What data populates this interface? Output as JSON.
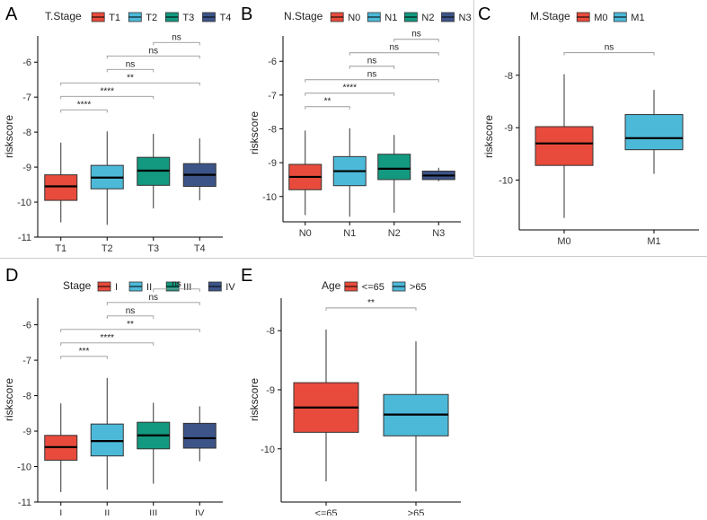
{
  "colors": {
    "red": "#e84b3c",
    "blue": "#4db9d9",
    "green": "#139980",
    "navy": "#3c5488"
  },
  "chart_data": [
    {
      "id": "A",
      "type": "boxplot",
      "panel_label": "A",
      "legend_title": "T.Stage",
      "categories": [
        "T1",
        "T2",
        "T3",
        "T4"
      ],
      "legend_labels": [
        "T1",
        "T2",
        "T3",
        "T4"
      ],
      "color_keys": [
        "red",
        "blue",
        "green",
        "navy"
      ],
      "ylabel": "riskscore",
      "xlabel": "",
      "ylim": [
        -11,
        -5.25
      ],
      "yticks": [
        -11,
        -10,
        -9,
        -8,
        -7,
        -6
      ],
      "ytick_labels": [
        "-11",
        "-10",
        "-9",
        "-8",
        "-7",
        "-6"
      ],
      "boxes": [
        {
          "min": -10.58,
          "q1": -9.95,
          "median": -9.55,
          "q3": -9.22,
          "max": -8.3
        },
        {
          "min": -10.65,
          "q1": -9.62,
          "median": -9.3,
          "q3": -8.95,
          "max": -7.98
        },
        {
          "min": -10.18,
          "q1": -9.52,
          "median": -9.1,
          "q3": -8.72,
          "max": -8.05
        },
        {
          "min": -9.95,
          "q1": -9.55,
          "median": -9.22,
          "q3": -8.9,
          "max": -8.18
        }
      ],
      "comparisons": [
        {
          "from": 0,
          "to": 1,
          "label": "****"
        },
        {
          "from": 0,
          "to": 2,
          "label": "****"
        },
        {
          "from": 0,
          "to": 3,
          "label": "**"
        },
        {
          "from": 1,
          "to": 2,
          "label": "ns"
        },
        {
          "from": 1,
          "to": 3,
          "label": "ns"
        },
        {
          "from": 2,
          "to": 3,
          "label": "ns"
        }
      ]
    },
    {
      "id": "B",
      "type": "boxplot",
      "panel_label": "B",
      "legend_title": "N.Stage",
      "categories": [
        "N0",
        "N1",
        "N2",
        "N3"
      ],
      "legend_labels": [
        "N0",
        "N1",
        "N2",
        "N3"
      ],
      "color_keys": [
        "red",
        "blue",
        "green",
        "navy"
      ],
      "ylabel": "riskscore",
      "xlabel": "",
      "ylim": [
        -10.75,
        -5.25
      ],
      "yticks": [
        -10,
        -9,
        -8,
        -7,
        -6
      ],
      "ytick_labels": [
        "-10",
        "-9",
        "-8",
        "-7",
        "-6"
      ],
      "boxes": [
        {
          "min": -10.55,
          "q1": -9.8,
          "median": -9.42,
          "q3": -9.05,
          "max": -8.05
        },
        {
          "min": -10.6,
          "q1": -9.68,
          "median": -9.25,
          "q3": -8.82,
          "max": -7.98
        },
        {
          "min": -10.48,
          "q1": -9.5,
          "median": -9.18,
          "q3": -8.75,
          "max": -8.18
        },
        {
          "min": -9.55,
          "q1": -9.5,
          "median": -9.38,
          "q3": -9.25,
          "max": -9.15
        }
      ],
      "comparisons": [
        {
          "from": 0,
          "to": 1,
          "label": "**"
        },
        {
          "from": 0,
          "to": 2,
          "label": "****"
        },
        {
          "from": 0,
          "to": 3,
          "label": "ns"
        },
        {
          "from": 1,
          "to": 2,
          "label": "ns"
        },
        {
          "from": 1,
          "to": 3,
          "label": "ns"
        },
        {
          "from": 2,
          "to": 3,
          "label": "ns"
        }
      ]
    },
    {
      "id": "C",
      "type": "boxplot",
      "panel_label": "C",
      "legend_title": "M.Stage",
      "categories": [
        "M0",
        "M1"
      ],
      "legend_labels": [
        "M0",
        "M1"
      ],
      "color_keys": [
        "red",
        "blue"
      ],
      "ylabel": "riskscore",
      "xlabel": "",
      "ylim": [
        -10.95,
        -7.25
      ],
      "yticks": [
        -10,
        -9,
        -8
      ],
      "ytick_labels": [
        "-10",
        "-9",
        "-8"
      ],
      "boxes": [
        {
          "min": -10.72,
          "q1": -9.72,
          "median": -9.3,
          "q3": -8.98,
          "max": -7.98
        },
        {
          "min": -9.88,
          "q1": -9.42,
          "median": -9.2,
          "q3": -8.75,
          "max": -8.28
        }
      ],
      "comparisons": [
        {
          "from": 0,
          "to": 1,
          "label": "ns"
        }
      ]
    },
    {
      "id": "D",
      "type": "boxplot",
      "panel_label": "D",
      "legend_title": "Stage",
      "categories": [
        "I",
        "II",
        "III",
        "IV"
      ],
      "legend_labels": [
        "I",
        "II",
        "III",
        "IV"
      ],
      "color_keys": [
        "red",
        "blue",
        "green",
        "navy"
      ],
      "ylabel": "riskscore",
      "xlabel": "",
      "ylim": [
        -11,
        -5.25
      ],
      "yticks": [
        -11,
        -10,
        -9,
        -8,
        -7,
        -6
      ],
      "ytick_labels": [
        "-11",
        "-10",
        "-9",
        "-8",
        "-7",
        "-6"
      ],
      "boxes": [
        {
          "min": -10.72,
          "q1": -9.82,
          "median": -9.45,
          "q3": -9.12,
          "max": -8.22
        },
        {
          "min": -10.65,
          "q1": -9.7,
          "median": -9.28,
          "q3": -8.8,
          "max": -7.5
        },
        {
          "min": -10.48,
          "q1": -9.5,
          "median": -9.12,
          "q3": -8.75,
          "max": -8.2
        },
        {
          "min": -9.85,
          "q1": -9.48,
          "median": -9.2,
          "q3": -8.78,
          "max": -8.3
        }
      ],
      "comparisons": [
        {
          "from": 0,
          "to": 1,
          "label": "***"
        },
        {
          "from": 0,
          "to": 2,
          "label": "****"
        },
        {
          "from": 0,
          "to": 3,
          "label": "**"
        },
        {
          "from": 1,
          "to": 2,
          "label": "ns"
        },
        {
          "from": 1,
          "to": 3,
          "label": "ns"
        },
        {
          "from": 2,
          "to": 3,
          "label": "ns"
        }
      ]
    },
    {
      "id": "E",
      "type": "boxplot",
      "panel_label": "E",
      "legend_title": "Age",
      "categories": [
        "<=65",
        ">65"
      ],
      "legend_labels": [
        "<=65",
        ">65"
      ],
      "color_keys": [
        "red",
        "blue"
      ],
      "ylabel": "riskscore",
      "xlabel": "",
      "ylim": [
        -10.9,
        -7.45
      ],
      "yticks": [
        -10,
        -9,
        -8
      ],
      "ytick_labels": [
        "-10",
        "-9",
        "-8"
      ],
      "boxes": [
        {
          "min": -10.55,
          "q1": -9.72,
          "median": -9.3,
          "q3": -8.88,
          "max": -7.98
        },
        {
          "min": -10.72,
          "q1": -9.78,
          "median": -9.42,
          "q3": -9.08,
          "max": -8.18
        }
      ],
      "comparisons": [
        {
          "from": 0,
          "to": 1,
          "label": "**"
        }
      ]
    }
  ]
}
